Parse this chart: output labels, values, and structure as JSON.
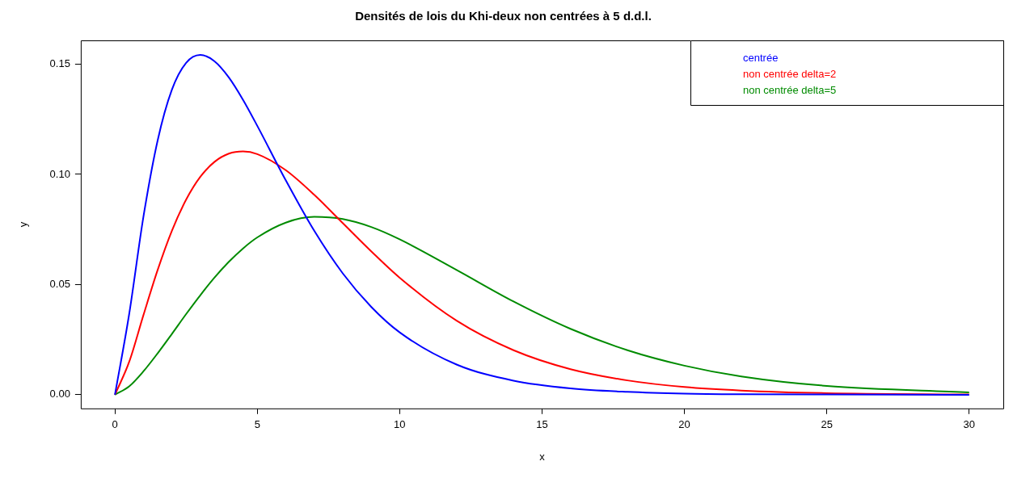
{
  "chart_data": {
    "type": "line",
    "title": "Densités de lois du Khi-deux non centrées à 5 d.d.l.",
    "xlabel": "x",
    "ylabel": "y",
    "x": [
      0,
      0.5,
      1,
      1.5,
      2,
      2.5,
      3,
      3.5,
      4,
      4.5,
      5,
      6,
      7,
      8,
      9,
      10,
      12,
      14,
      16,
      18,
      20,
      22,
      25,
      30
    ],
    "series": [
      {
        "name": "centrée",
        "color": "#0000ff",
        "values": [
          0,
          0.0366,
          0.0807,
          0.1154,
          0.1384,
          0.1506,
          0.1542,
          0.1513,
          0.144,
          0.1338,
          0.122,
          0.0973,
          0.0744,
          0.0551,
          0.0399,
          0.0283,
          0.0137,
          0.0064,
          0.0029,
          0.0013,
          0.0005,
          0.0002,
          0.0001,
          0
        ]
      },
      {
        "name": "non centrée delta=2",
        "color": "#ff0000",
        "values": [
          0,
          0.0149,
          0.0361,
          0.0566,
          0.0744,
          0.0885,
          0.0989,
          0.1057,
          0.1094,
          0.1104,
          0.1092,
          0.1019,
          0.0907,
          0.0779,
          0.0651,
          0.0531,
          0.0336,
          0.0202,
          0.0116,
          0.0065,
          0.0035,
          0.0019,
          0.0007,
          0.0001
        ]
      },
      {
        "name": "non centrée delta=5",
        "color": "#008b00",
        "values": [
          0,
          0.0038,
          0.0106,
          0.0188,
          0.0276,
          0.0366,
          0.0452,
          0.0532,
          0.0603,
          0.0664,
          0.0714,
          0.0781,
          0.0807,
          0.0797,
          0.0761,
          0.0705,
          0.0566,
          0.0423,
          0.0299,
          0.0202,
          0.0132,
          0.0083,
          0.004,
          0.0011
        ]
      }
    ],
    "xlim": [
      -1.2,
      31.2
    ],
    "xticks": [
      0,
      5,
      10,
      15,
      20,
      25,
      30
    ],
    "ylim": [
      -0.0062,
      0.1608
    ],
    "yticks": [
      {
        "value": 0,
        "label": "0.00"
      },
      {
        "value": 0.05,
        "label": "0.05"
      },
      {
        "value": 0.1,
        "label": "0.10"
      },
      {
        "value": 0.15,
        "label": "0.15"
      }
    ],
    "grid": false,
    "legend": "top right",
    "marker": "none",
    "line_style": "solid"
  }
}
